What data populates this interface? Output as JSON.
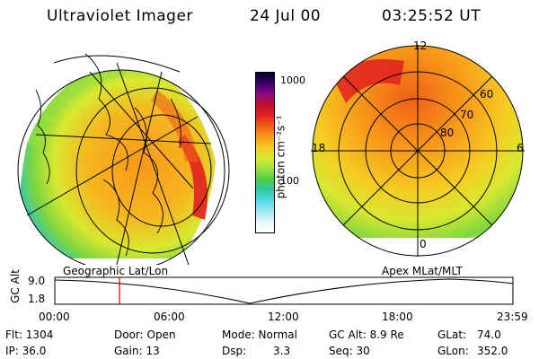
{
  "header": {
    "title": "Ultraviolet Imager",
    "date": "24 Jul 00",
    "time": "03:25:52 UT"
  },
  "colorbar": {
    "unit_label": "photon cm⁻²s⁻¹",
    "ticks": [
      "1000",
      "100"
    ],
    "colors": [
      "#000033",
      "#3b0066",
      "#8a0a86",
      "#c0102a",
      "#e02020",
      "#f06018",
      "#f89818",
      "#f5cc22",
      "#d8e830",
      "#9ee040",
      "#4cd040",
      "#30c8a8",
      "#50d8e8",
      "#a0e8f0",
      "#e8f6f8",
      "#ffffff"
    ]
  },
  "left_panel": {
    "label": "Geographic Lat/Lon"
  },
  "right_panel": {
    "label": "Apex MLat/MLT",
    "mlt_labels": {
      "top": "12",
      "left": "18",
      "right": "6",
      "bottom": "0"
    },
    "lat_labels": [
      "60",
      "70",
      "80"
    ]
  },
  "timeline": {
    "ylabel": "GC Alt",
    "yticks": [
      "9.0",
      "1.8"
    ],
    "xticks": [
      "00:00",
      "06:00",
      "12:00",
      "18:00",
      "23:59"
    ],
    "marker_color": "#cc0000"
  },
  "info": {
    "flt": "Flt: 1304",
    "ip": "IP: 36.0",
    "door": "Door: Open",
    "gain": "Gain: 13",
    "mode": "Mode: Normal",
    "dsp_label": "Dsp:",
    "dsp_value": "3.3",
    "gc_alt": "GC Alt: 8.9 Re",
    "seq": "Seq: 30",
    "glat_label": "GLat:",
    "glat_value": "74.0",
    "glon_label": "GLon:",
    "glon_value": "352.0"
  }
}
